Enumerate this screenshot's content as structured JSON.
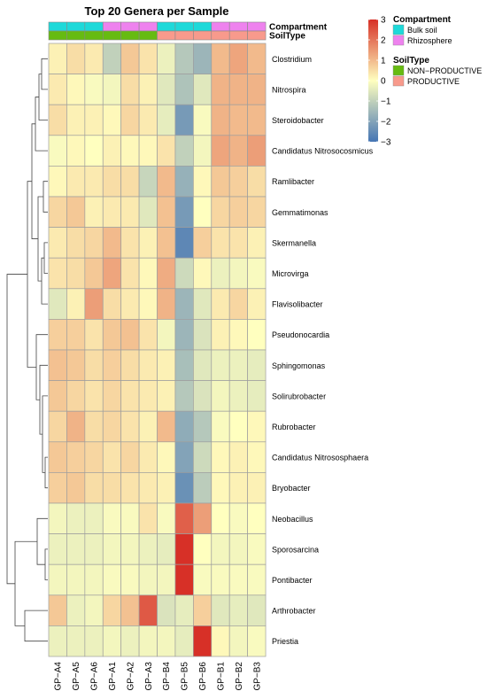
{
  "chart_data": {
    "type": "heatmap",
    "title": "Top 20 Genera per Sample",
    "columns": [
      "GP-A4",
      "GP-A5",
      "GP-A6",
      "GP-A1",
      "GP-A2",
      "GP-A3",
      "GP-B4",
      "GP-B5",
      "GP-B6",
      "GP-B1",
      "GP-B2",
      "GP-B3"
    ],
    "rows": [
      "Clostridium",
      "Nitrospira",
      "Steroidobacter",
      "Candidatus Nitrosocosmicus",
      "Ramlibacter",
      "Gemmatimonas",
      "Skermanella",
      "Microvirga",
      "Flavisolibacter",
      "Pseudonocardia",
      "Sphingomonas",
      "Solirubrobacter",
      "Rubrobacter",
      "Candidatus Nitrososphaera",
      "Bryobacter",
      "Neobacillus",
      "Sporosarcina",
      "Pontibacter",
      "Arthrobacter",
      "Priestia"
    ],
    "values": [
      [
        0.2,
        0.5,
        0.3,
        -1.0,
        0.8,
        0.4,
        -0.3,
        -1.2,
        -1.6,
        1.0,
        1.3,
        1.0
      ],
      [
        0.3,
        0.1,
        -0.1,
        -0.2,
        0.5,
        0.2,
        -0.5,
        -1.3,
        -0.5,
        1.1,
        1.1,
        1.1
      ],
      [
        0.5,
        0.2,
        0.2,
        0.1,
        0.6,
        0.3,
        -0.4,
        -2.2,
        -0.1,
        1.1,
        1.0,
        1.0
      ],
      [
        -0.1,
        0.1,
        0.0,
        0.2,
        0.1,
        0.1,
        0.4,
        -1.0,
        -0.2,
        1.3,
        1.1,
        1.4
      ],
      [
        0.1,
        0.3,
        0.3,
        0.5,
        0.5,
        -0.9,
        1.0,
        -1.7,
        0.1,
        0.8,
        0.7,
        0.5
      ],
      [
        0.6,
        0.8,
        0.2,
        0.3,
        0.3,
        -0.5,
        0.9,
        -2.2,
        0.0,
        0.6,
        0.7,
        0.6
      ],
      [
        0.3,
        0.5,
        0.6,
        1.0,
        0.4,
        0.2,
        0.9,
        -2.6,
        0.7,
        0.4,
        0.4,
        0.2
      ],
      [
        0.4,
        0.5,
        0.8,
        1.3,
        0.4,
        0.1,
        1.2,
        -0.8,
        0.1,
        -0.3,
        -0.2,
        -0.1
      ],
      [
        -0.5,
        0.2,
        1.4,
        0.5,
        0.3,
        0.1,
        1.1,
        -1.6,
        -0.5,
        0.3,
        0.6,
        0.2
      ],
      [
        0.7,
        0.7,
        0.4,
        0.8,
        0.9,
        0.4,
        -0.2,
        -1.6,
        -0.6,
        0.2,
        0.1,
        0.0
      ],
      [
        0.9,
        0.8,
        0.5,
        0.7,
        0.5,
        0.3,
        0.2,
        -1.4,
        -0.5,
        -0.3,
        -0.3,
        -0.4
      ],
      [
        0.8,
        0.6,
        0.4,
        0.6,
        0.4,
        0.3,
        0.2,
        -1.2,
        -0.6,
        -0.2,
        -0.3,
        -0.4
      ],
      [
        0.6,
        1.1,
        0.5,
        0.6,
        0.4,
        0.2,
        1.0,
        -1.8,
        -1.2,
        -0.1,
        0.0,
        0.1
      ],
      [
        0.8,
        0.7,
        0.6,
        0.4,
        0.6,
        0.3,
        0.1,
        -2.0,
        -0.8,
        0.1,
        0.2,
        0.1
      ],
      [
        0.7,
        0.8,
        0.5,
        0.5,
        0.4,
        0.3,
        0.2,
        -2.4,
        -1.1,
        0.1,
        0.2,
        0.2
      ],
      [
        -0.2,
        -0.3,
        -0.3,
        -0.1,
        -0.1,
        0.4,
        -0.1,
        2.3,
        1.4,
        0.0,
        -0.1,
        0.0
      ],
      [
        -0.3,
        -0.3,
        -0.3,
        -0.2,
        -0.2,
        -0.3,
        -0.4,
        3.1,
        0.0,
        -0.2,
        -0.2,
        -0.1
      ],
      [
        -0.2,
        -0.2,
        -0.2,
        -0.1,
        -0.1,
        -0.2,
        -0.2,
        3.1,
        -0.1,
        -0.1,
        -0.1,
        -0.1
      ],
      [
        0.8,
        -0.3,
        -0.2,
        0.6,
        0.9,
        2.4,
        -0.6,
        -0.4,
        0.7,
        -0.5,
        -0.4,
        -0.5
      ],
      [
        -0.3,
        -0.3,
        -0.3,
        -0.2,
        -0.3,
        -0.2,
        -0.2,
        -0.4,
        3.2,
        0.1,
        -0.2,
        -0.1
      ]
    ],
    "color_scale": {
      "min": -3,
      "max": 3,
      "ticks": [
        3,
        2,
        1,
        0,
        -1,
        -2,
        -3
      ],
      "low": "#4575b4",
      "mid": "#ffffbf",
      "high": "#d73027"
    },
    "annotations": [
      {
        "name": "Compartment",
        "values": [
          "Bulk soil",
          "Bulk soil",
          "Bulk soil",
          "Rhizosphere",
          "Rhizosphere",
          "Rhizosphere",
          "Bulk soil",
          "Bulk soil",
          "Bulk soil",
          "Rhizosphere",
          "Rhizosphere",
          "Rhizosphere"
        ],
        "levels": [
          {
            "label": "Bulk soil",
            "color": "#1ed9d9"
          },
          {
            "label": "Rhizosphere",
            "color": "#ee82ee"
          }
        ]
      },
      {
        "name": "SoilType",
        "values": [
          "NON-PRODUCTIVE",
          "NON-PRODUCTIVE",
          "NON-PRODUCTIVE",
          "NON-PRODUCTIVE",
          "NON-PRODUCTIVE",
          "NON-PRODUCTIVE",
          "PRODUCTIVE",
          "PRODUCTIVE",
          "PRODUCTIVE",
          "PRODUCTIVE",
          "PRODUCTIVE",
          "PRODUCTIVE"
        ],
        "levels": [
          {
            "label": "NON−PRODUCTIVE",
            "color": "#66bb11"
          },
          {
            "label": "PRODUCTIVE",
            "color": "#f89a8c"
          }
        ]
      }
    ],
    "column_labels": [
      "GP−A4",
      "GP−A5",
      "GP−A6",
      "GP−A1",
      "GP−A2",
      "GP−A3",
      "GP−B4",
      "GP−B5",
      "GP−B6",
      "GP−B1",
      "GP−B2",
      "GP−B3"
    ],
    "row_dendrogram": true
  }
}
